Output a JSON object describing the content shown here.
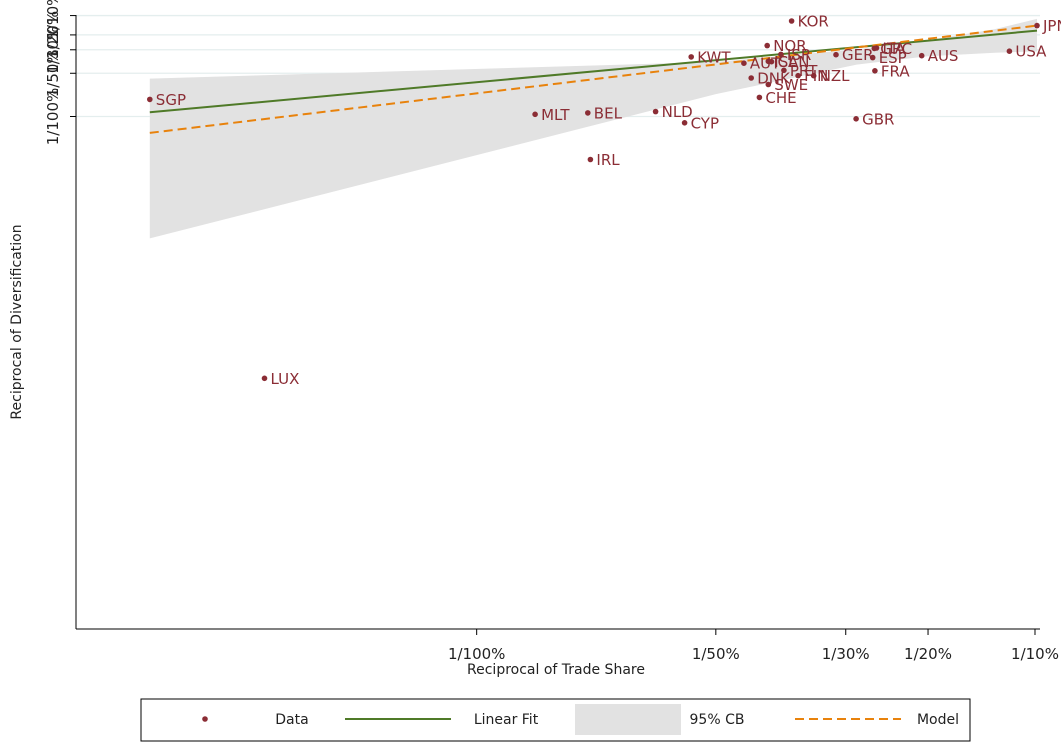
{
  "chart_data": {
    "type": "scatter",
    "xlabel": "Reciprocal of Trade Share",
    "ylabel": "Reciprocal of Diversification",
    "x_ticks": [
      {
        "value": 0.01,
        "label": "1/100%"
      },
      {
        "value": 0.02,
        "label": "1/50%"
      },
      {
        "value": 0.0333,
        "label": "1/30%"
      },
      {
        "value": 0.05,
        "label": "1/20%"
      },
      {
        "value": 0.1,
        "label": "1/10%"
      }
    ],
    "y_ticks": [
      {
        "value": 0.1,
        "label": "1/10%"
      },
      {
        "value": 0.05,
        "label": "1/20%"
      },
      {
        "value": 0.0333,
        "label": "1/30%"
      },
      {
        "value": 0.02,
        "label": "1/50%"
      },
      {
        "value": 0.01,
        "label": "1/100%"
      }
    ],
    "xlim": [
      0.0045,
      0.104
    ],
    "ylim": [
      0.0005,
      0.1025
    ],
    "grid": "horizontal",
    "points": [
      {
        "label": "KOR",
        "x": 0.0265,
        "y": 0.0801
      },
      {
        "label": "JPN",
        "x": 0.1016,
        "y": 0.0678
      },
      {
        "label": "NOR",
        "x": 0.0241,
        "y": 0.037
      },
      {
        "label": "ITA",
        "x": 0.0384,
        "y": 0.0348
      },
      {
        "label": "GRC",
        "x": 0.038,
        "y": 0.0345
      },
      {
        "label": "USA",
        "x": 0.0828,
        "y": 0.0322
      },
      {
        "label": "ISR",
        "x": 0.0254,
        "y": 0.0298
      },
      {
        "label": "GER",
        "x": 0.0319,
        "y": 0.0296
      },
      {
        "label": "AUS",
        "x": 0.0483,
        "y": 0.0289
      },
      {
        "label": "KWT",
        "x": 0.0184,
        "y": 0.0281
      },
      {
        "label": "ESP",
        "x": 0.0377,
        "y": 0.0277
      },
      {
        "label": "ISL",
        "x": 0.0242,
        "y": 0.0255
      },
      {
        "label": "CAN",
        "x": 0.0245,
        "y": 0.0253
      },
      {
        "label": "AUT",
        "x": 0.0221,
        "y": 0.0245
      },
      {
        "label": "PRT",
        "x": 0.0257,
        "y": 0.0212
      },
      {
        "label": "FRA",
        "x": 0.0381,
        "y": 0.021
      },
      {
        "label": "FIN",
        "x": 0.0272,
        "y": 0.0191
      },
      {
        "label": "NZL",
        "x": 0.029,
        "y": 0.0191
      },
      {
        "label": "DNK",
        "x": 0.0227,
        "y": 0.0183
      },
      {
        "label": "SWE",
        "x": 0.0242,
        "y": 0.0163
      },
      {
        "label": "CHE",
        "x": 0.0234,
        "y": 0.0132
      },
      {
        "label": "SGP",
        "x": 0.0051,
        "y": 0.0128
      },
      {
        "label": "NLD",
        "x": 0.0164,
        "y": 0.0107
      },
      {
        "label": "BEL",
        "x": 0.0134,
        "y": 0.0105
      },
      {
        "label": "MLT",
        "x": 0.0116,
        "y": 0.0103
      },
      {
        "label": "GBR",
        "x": 0.0349,
        "y": 0.0097
      },
      {
        "label": "CYP",
        "x": 0.018,
        "y": 0.0092
      },
      {
        "label": "IRL",
        "x": 0.0135,
        "y": 0.006
      },
      {
        "label": "LUX",
        "x": 0.0063,
        "y": 0.0013
      }
    ],
    "linear_fit": {
      "x": [
        0.0051,
        0.1016
      ],
      "y": [
        0.0106,
        0.0573
      ]
    },
    "model": {
      "x": [
        0.0051,
        0.1016
      ],
      "y": [
        0.0081,
        0.0678
      ]
    },
    "confidence_band": {
      "x": [
        0.0051,
        0.02,
        0.035,
        0.05,
        0.075,
        0.1016
      ],
      "upper": [
        0.0181,
        0.0252,
        0.0336,
        0.0428,
        0.0601,
        0.087
      ],
      "lower": [
        0.003,
        0.0139,
        0.0238,
        0.0286,
        0.031,
        0.032
      ]
    },
    "legend": {
      "position": "bottom",
      "items": [
        {
          "type": "marker",
          "label": "Data"
        },
        {
          "type": "line",
          "label": "Linear Fit"
        },
        {
          "type": "band",
          "label": "95% CB"
        },
        {
          "type": "dashed",
          "label": "Model"
        }
      ]
    },
    "colors": {
      "points": "#8b2d35",
      "linear_fit": "#4f7a28",
      "model": "#e8820c",
      "band": "#e2e2e2",
      "grid": "#e4eeee"
    }
  }
}
